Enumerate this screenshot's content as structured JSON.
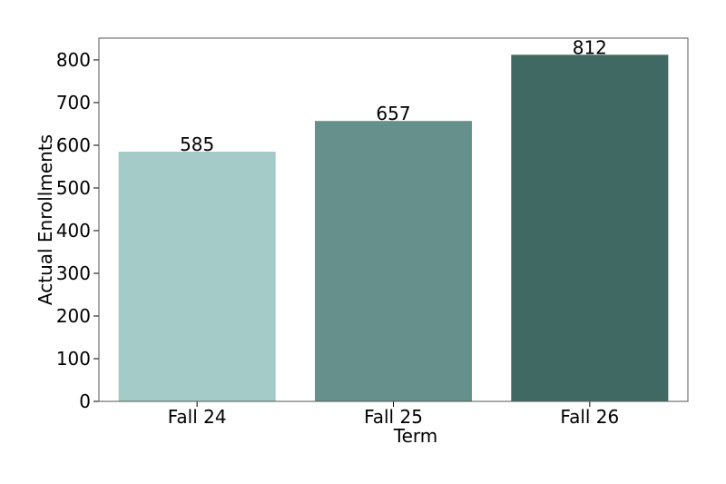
{
  "chart_data": {
    "type": "bar",
    "xlabel": "Term",
    "ylabel": "Actual Enrollments",
    "categories": [
      "Fall 24",
      "Fall 25",
      "Fall 26"
    ],
    "values": [
      585,
      657,
      812
    ],
    "colors": [
      "#a4cbc8",
      "#66908c",
      "#416964"
    ],
    "ylim": [
      0,
      851
    ],
    "yticks": [
      0,
      100,
      200,
      300,
      400,
      500,
      600,
      700,
      800
    ],
    "grid": false
  }
}
